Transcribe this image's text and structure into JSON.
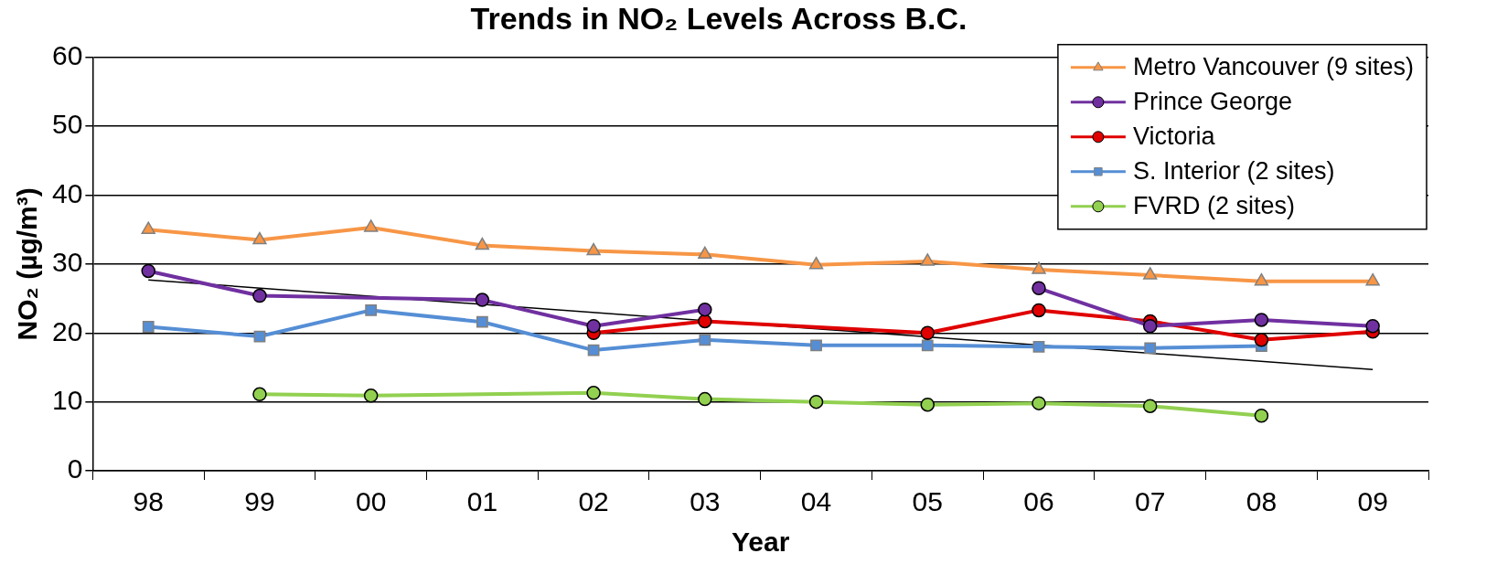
{
  "chart_data": {
    "type": "line",
    "title": "Trends in NO₂ Levels Across B.C.",
    "xlabel": "Year",
    "ylabel": "NO₂ (µg/m³)",
    "categories": [
      "98",
      "99",
      "00",
      "01",
      "02",
      "03",
      "04",
      "05",
      "06",
      "07",
      "08",
      "09"
    ],
    "series": [
      {
        "name": "Metro Vancouver (9 sites)",
        "color": "#f79646",
        "marker": "triangle",
        "values": [
          35,
          33.5,
          35.3,
          32.7,
          31.9,
          31.4,
          29.9,
          30.4,
          29.2,
          28.4,
          27.5,
          27.5
        ]
      },
      {
        "name": "Prince George",
        "color": "#7030a0",
        "marker": "circle",
        "values": [
          29,
          25.4,
          null,
          24.8,
          21,
          23.4,
          null,
          null,
          26.5,
          21,
          21.9,
          21
        ]
      },
      {
        "name": "Victoria",
        "color": "#e00000",
        "marker": "circle",
        "values": [
          null,
          null,
          null,
          null,
          20,
          21.7,
          null,
          20,
          23.3,
          21.7,
          19,
          20.2
        ]
      },
      {
        "name": "S. Interior (2 sites)",
        "color": "#558ed5",
        "marker": "square",
        "values": [
          20.9,
          19.5,
          23.3,
          21.6,
          17.5,
          19,
          18.2,
          18.2,
          18,
          17.8,
          18.1,
          null
        ]
      },
      {
        "name": "FVRD (2 sites)",
        "color": "#92d050",
        "marker": "circle",
        "values": [
          null,
          11.1,
          10.9,
          null,
          11.3,
          10.4,
          10,
          9.6,
          9.8,
          9.4,
          8,
          null
        ]
      },
      {
        "type": "line",
        "color": "#000000",
        "marker": "none",
        "x": [
          "98",
          "09"
        ],
        "values": [
          27.7,
          14.7
        ]
      }
    ],
    "ylim": [
      0,
      60
    ],
    "yticks": [
      0,
      10,
      20,
      30,
      40,
      50,
      60
    ],
    "grid": "y",
    "legend": "top right"
  }
}
